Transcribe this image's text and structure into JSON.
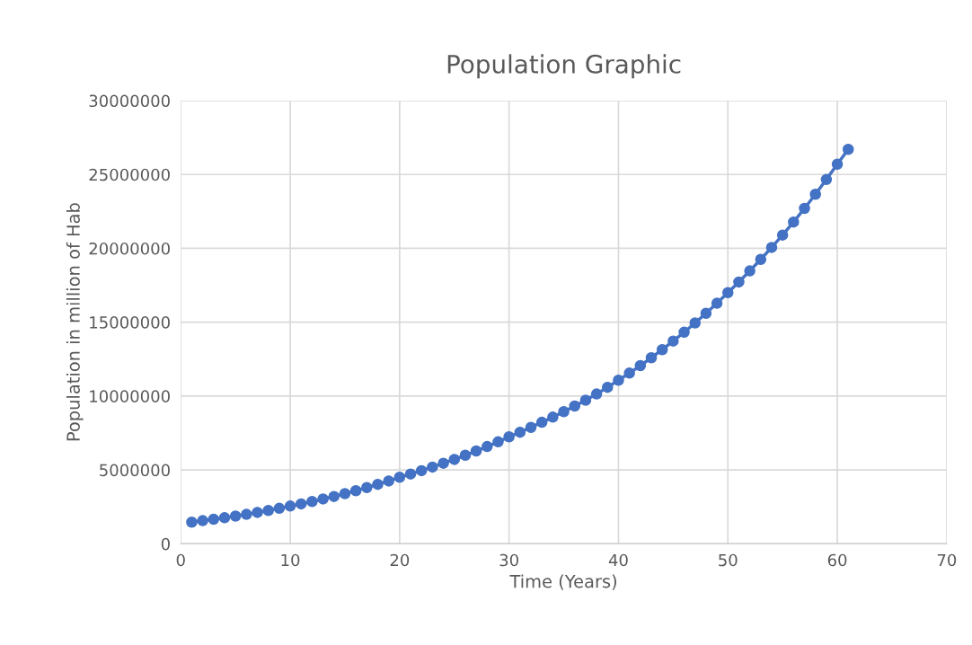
{
  "chart_data": {
    "type": "line",
    "title": "Population Graphic",
    "xlabel": "Time (Years)",
    "ylabel": "Population in million of Hab",
    "x": [
      1,
      2,
      3,
      4,
      5,
      6,
      7,
      8,
      9,
      10,
      11,
      12,
      13,
      14,
      15,
      16,
      17,
      18,
      19,
      20,
      21,
      22,
      23,
      24,
      25,
      26,
      27,
      28,
      29,
      30,
      31,
      32,
      33,
      34,
      35,
      36,
      37,
      38,
      39,
      40,
      41,
      42,
      43,
      44,
      45,
      46,
      47,
      48,
      49,
      50,
      51,
      52,
      53,
      54,
      55,
      56,
      57,
      58,
      59,
      60,
      61
    ],
    "series": [
      {
        "color": "#4472c4",
        "values": [
          1460000,
          1560000,
          1660000,
          1760000,
          1870000,
          1990000,
          2120000,
          2250000,
          2400000,
          2550000,
          2700000,
          2860000,
          3030000,
          3200000,
          3390000,
          3590000,
          3800000,
          4020000,
          4250000,
          4500000,
          4720000,
          4950000,
          5190000,
          5450000,
          5710000,
          5990000,
          6280000,
          6580000,
          6900000,
          7240000,
          7550000,
          7880000,
          8220000,
          8570000,
          8940000,
          9320000,
          9720000,
          10140000,
          10590000,
          11070000,
          11550000,
          12060000,
          12590000,
          13140000,
          13720000,
          14320000,
          14950000,
          15600000,
          16280000,
          17000000,
          17720000,
          18470000,
          19250000,
          20060000,
          20900000,
          21780000,
          22700000,
          23660000,
          24660000,
          25700000,
          26700000
        ]
      }
    ],
    "xlim": [
      0,
      70
    ],
    "xticks": [
      0,
      10,
      20,
      30,
      40,
      50,
      60,
      70
    ],
    "ylim": [
      0,
      30000000
    ],
    "yticks": [
      0,
      5000000,
      10000000,
      15000000,
      20000000,
      25000000,
      30000000
    ],
    "grid": true,
    "marker": "circle",
    "line_style": "solid",
    "legend": false
  }
}
